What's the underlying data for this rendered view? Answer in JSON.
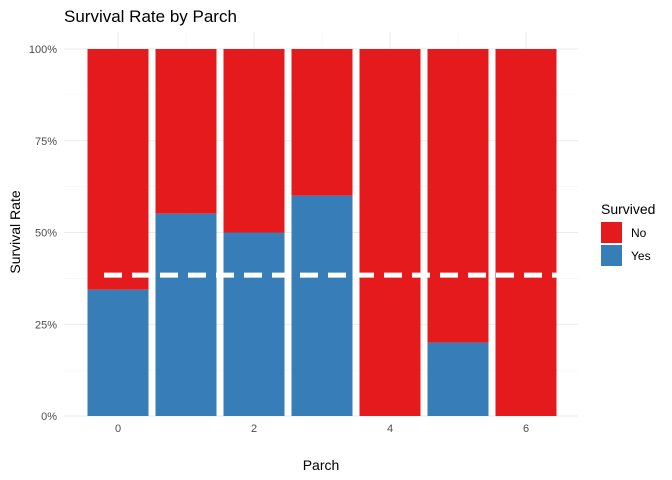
{
  "chart_data": {
    "type": "bar",
    "stacked": true,
    "title": "Survival Rate by Parch",
    "xlabel": "Parch",
    "ylabel": "Survival Rate",
    "x": [
      0,
      1,
      2,
      3,
      4,
      5,
      6
    ],
    "x_tick_labels": [
      "0",
      "2",
      "4",
      "6"
    ],
    "x_tick_values": [
      0,
      2,
      4,
      6
    ],
    "y_tick_labels": [
      "0%",
      "25%",
      "50%",
      "75%",
      "100%"
    ],
    "y_tick_values": [
      0,
      0.25,
      0.5,
      0.75,
      1.0
    ],
    "ylim": [
      0,
      1
    ],
    "xlim": [
      -0.7,
      6.7
    ],
    "series": [
      {
        "name": "Yes",
        "color": "#377EB8",
        "values": [
          0.344,
          0.551,
          0.5,
          0.6,
          0.0,
          0.2,
          0.0
        ]
      },
      {
        "name": "No",
        "color": "#E41A1C",
        "values": [
          0.656,
          0.449,
          0.5,
          0.4,
          1.0,
          0.8,
          1.0
        ]
      }
    ],
    "reference_line": {
      "y": 0.384,
      "style": "dashed",
      "color": "#ffffff"
    },
    "legend": {
      "title": "Survived",
      "position": "right",
      "entries": [
        "No",
        "Yes"
      ]
    },
    "grid": true
  }
}
